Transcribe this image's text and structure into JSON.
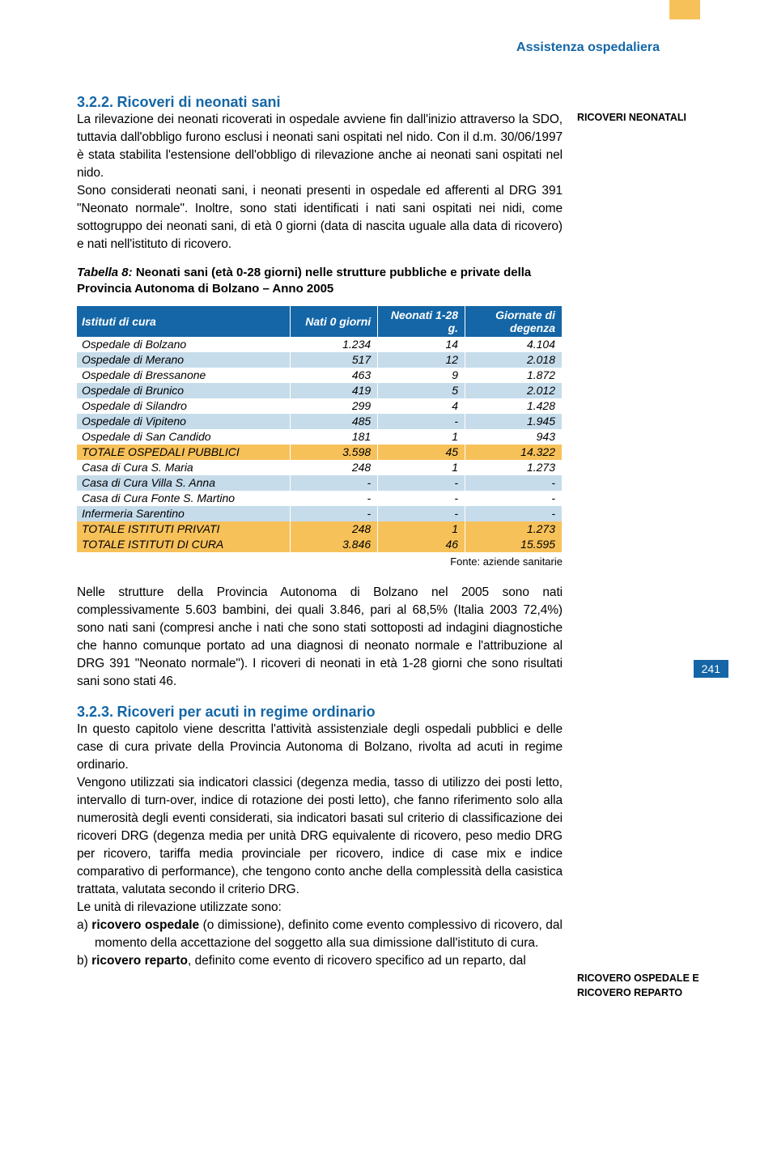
{
  "header": {
    "title": "Assistenza ospedaliera"
  },
  "page_number": "241",
  "section_3_2_2": {
    "num": "3.2.2.",
    "title": "Ricoveri di neonati sani",
    "side_label": "RICOVERI NEONATALI",
    "para": "La rilevazione dei neonati ricoverati in ospedale avviene fin dall'inizio attraverso la SDO, tuttavia dall'obbligo furono esclusi i neonati sani ospitati nel nido. Con il d.m. 30/06/1997 è stata stabilita l'estensione dell'obbligo di rilevazione anche ai neonati sani ospitati nel nido.",
    "para2": "Sono considerati neonati sani, i neonati presenti in ospedale ed afferenti al DRG 391 \"Neonato normale\". Inoltre, sono stati identificati i nati sani ospitati nei nidi, come sottogruppo dei neonati sani, di età 0 giorni (data di nascita uguale alla data di ricovero) e nati nell'istituto di ricovero."
  },
  "table8": {
    "caption_prefix": "Tabella 8:",
    "caption": "Neonati sani (età 0-28 giorni) nelle strutture pubbliche e private della Provincia Autonoma di Bolzano – Anno 2005",
    "columns": [
      "Istituti di cura",
      "Nati 0 giorni",
      "Neonati 1-28 g.",
      "Giornate di degenza"
    ],
    "rows": [
      {
        "cls": "row-white",
        "c": [
          "Ospedale di Bolzano",
          "1.234",
          "14",
          "4.104"
        ]
      },
      {
        "cls": "row-blue",
        "c": [
          "Ospedale di Merano",
          "517",
          "12",
          "2.018"
        ]
      },
      {
        "cls": "row-white",
        "c": [
          "Ospedale di Bressanone",
          "463",
          "9",
          "1.872"
        ]
      },
      {
        "cls": "row-blue",
        "c": [
          "Ospedale di Brunico",
          "419",
          "5",
          "2.012"
        ]
      },
      {
        "cls": "row-white",
        "c": [
          "Ospedale di Silandro",
          "299",
          "4",
          "1.428"
        ]
      },
      {
        "cls": "row-blue",
        "c": [
          "Ospedale di Vipiteno",
          "485",
          "-",
          "1.945"
        ]
      },
      {
        "cls": "row-white",
        "c": [
          "Ospedale di San Candido",
          "181",
          "1",
          "943"
        ]
      },
      {
        "cls": "row-orange",
        "c": [
          "TOTALE OSPEDALI PUBBLICI",
          "3.598",
          "45",
          "14.322"
        ]
      },
      {
        "cls": "row-white",
        "c": [
          "Casa di Cura S. Maria",
          "248",
          "1",
          "1.273"
        ]
      },
      {
        "cls": "row-blue",
        "c": [
          "Casa di Cura Villa S. Anna",
          "-",
          "-",
          "-"
        ]
      },
      {
        "cls": "row-white",
        "c": [
          "Casa di Cura Fonte S. Martino",
          "-",
          "-",
          "-"
        ]
      },
      {
        "cls": "row-blue",
        "c": [
          "Infermeria Sarentino",
          "-",
          "-",
          "-"
        ]
      },
      {
        "cls": "row-orange",
        "c": [
          "TOTALE ISTITUTI PRIVATI",
          "248",
          "1",
          "1.273"
        ]
      },
      {
        "cls": "row-orange",
        "c": [
          "TOTALE ISTITUTI DI CURA",
          "3.846",
          "46",
          "15.595"
        ]
      }
    ],
    "source": "Fonte: aziende sanitarie"
  },
  "para_below_table": "Nelle strutture della Provincia Autonoma di Bolzano nel 2005 sono nati complessivamente 5.603 bambini, dei quali 3.846, pari al 68,5% (Italia 2003 72,4%) sono nati sani (compresi anche i nati che sono stati sottoposti ad indagini diagnostiche che hanno comunque portato ad una diagnosi di neonato normale e l'attribuzione al DRG 391 \"Neonato normale\"). I ricoveri di neonati in età 1-28 giorni che sono risultati sani sono stati 46.",
  "section_3_2_3": {
    "num": "3.2.3.",
    "title": "Ricoveri per acuti in regime ordinario",
    "para1": "In questo capitolo viene descritta l'attività assistenziale degli ospedali pubblici e delle case di cura private della Provincia Autonoma di Bolzano, rivolta ad acuti in regime ordinario.",
    "para2": "Vengono utilizzati sia indicatori classici (degenza media, tasso di utilizzo dei posti letto, intervallo di turn-over, indice di rotazione dei posti letto), che fanno riferimento solo alla numerosità degli eventi considerati, sia indicatori basati sul criterio di classificazione dei ricoveri DRG (degenza media per unità DRG equivalente di ricovero, peso medio DRG per ricovero, tariffa media provinciale per ricovero, indice di case mix e indice comparativo di performance), che tengono conto anche della complessità della casistica trattata, valutata secondo il criterio DRG.",
    "para3": "Le unità di rilevazione utilizzate sono:",
    "item_a_label": "a) ",
    "item_a_bold": "ricovero ospedale",
    "item_a_rest": " (o dimissione), definito come evento complessivo di ricovero, dal momento della accettazione del soggetto alla sua dimissione dall'istituto di cura.",
    "item_b_label": "b) ",
    "item_b_bold": "ricovero reparto",
    "item_b_rest": ", definito come evento di ricovero specifico ad un reparto, dal",
    "side_label": "RICOVERO OSPEDALE E RICOVERO REPARTO"
  }
}
